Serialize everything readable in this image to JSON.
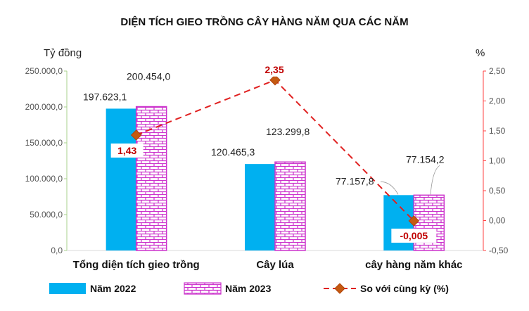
{
  "chart_data": {
    "type": "bar",
    "title": "DIỆN TÍCH GIEO TRỒNG CÂY HÀNG NĂM QUA CÁC NĂM",
    "ylabel": "Tỷ đồng",
    "y2label": "%",
    "categories": [
      "Tổng diện tích gieo trồng",
      "Cây lúa",
      "cây hàng năm khác"
    ],
    "ylim": [
      0,
      250000
    ],
    "y_ticks": [
      "0,0",
      "50.000,0",
      "100.000,0",
      "150.000,0",
      "200.000,0",
      "250.000,0"
    ],
    "y2lim": [
      -0.5,
      2.5
    ],
    "y2_ticks": [
      "-0,50",
      "0,00",
      "0,50",
      "1,00",
      "1,50",
      "2,00",
      "2,50"
    ],
    "series": [
      {
        "name": "Năm 2022",
        "kind": "bar",
        "color": "#00b0f0",
        "values": [
          197623.1,
          120465.3,
          77157.8
        ],
        "labels": [
          "197.623,1",
          "120.465,3",
          "77.157,8"
        ]
      },
      {
        "name": "Năm 2023",
        "kind": "bar",
        "color": "#cc33cc",
        "pattern": "brick",
        "values": [
          200454.0,
          123299.8,
          77154.2
        ],
        "labels": [
          "200.454,0",
          "123.299,8",
          "77.154,2"
        ]
      },
      {
        "name": "So với cùng kỳ (%)",
        "kind": "line",
        "axis": "right",
        "color": "#e02020",
        "marker_color": "#c55a11",
        "values": [
          1.43,
          2.35,
          -0.005
        ],
        "labels": [
          "1,43",
          "2,35",
          "-0,005"
        ]
      }
    ],
    "legend_position": "bottom",
    "grid": false
  }
}
